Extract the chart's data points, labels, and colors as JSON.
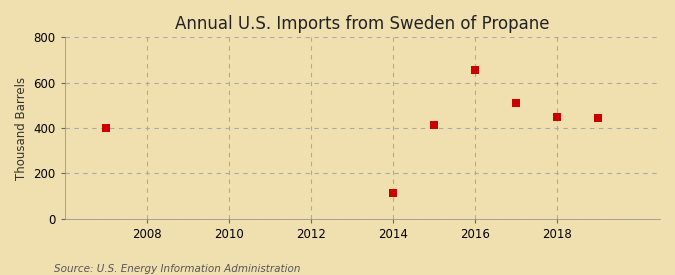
{
  "title": "Annual U.S. Imports from Sweden of Propane",
  "ylabel": "Thousand Barrels",
  "source": "Source: U.S. Energy Information Administration",
  "background_color": "#f0e0b0",
  "plot_background_color": "#f0e0b0",
  "data_points": [
    {
      "year": 2007,
      "value": 401
    },
    {
      "year": 2014,
      "value": 115
    },
    {
      "year": 2015,
      "value": 415
    },
    {
      "year": 2016,
      "value": 655
    },
    {
      "year": 2017,
      "value": 510
    },
    {
      "year": 2018,
      "value": 450
    },
    {
      "year": 2019,
      "value": 446
    }
  ],
  "marker_color": "#cc0000",
  "marker_style": "s",
  "marker_size": 6,
  "xlim": [
    2006.0,
    2020.5
  ],
  "ylim": [
    0,
    800
  ],
  "yticks": [
    0,
    200,
    400,
    600,
    800
  ],
  "xticks": [
    2008,
    2010,
    2012,
    2014,
    2016,
    2018
  ],
  "grid_color": "#aaaaaa",
  "grid_linestyle": "--",
  "title_fontsize": 12,
  "label_fontsize": 8.5,
  "tick_fontsize": 8.5,
  "source_fontsize": 7.5
}
